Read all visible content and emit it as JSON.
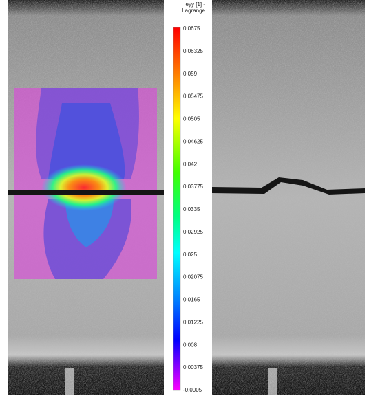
{
  "colorbar": {
    "title": "eyy [1] - Lagrange",
    "labels": [
      "0.0675",
      "0.06325",
      "0.059",
      "0.05475",
      "0.0505",
      "0.04625",
      "0.042",
      "0.03775",
      "0.0335",
      "0.02925",
      "0.025",
      "0.02075",
      "0.0165",
      "0.01225",
      "0.008",
      "0.00375",
      "-0.0005"
    ]
  }
}
